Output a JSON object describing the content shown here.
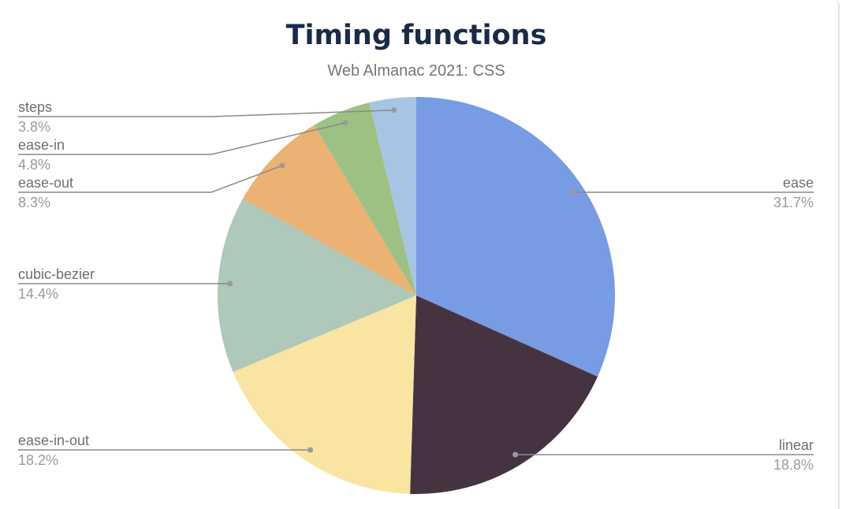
{
  "chart_data": {
    "type": "pie",
    "title": "Timing functions",
    "subtitle": "Web Almanac 2021: CSS",
    "slices": [
      {
        "label": "ease",
        "value": 31.7,
        "display": "31.7%",
        "color": "#779ce3"
      },
      {
        "label": "linear",
        "value": 18.8,
        "display": "18.8%",
        "color": "#463342"
      },
      {
        "label": "ease-in-out",
        "value": 18.2,
        "display": "18.2%",
        "color": "#f9e4a1"
      },
      {
        "label": "cubic-bezier",
        "value": 14.4,
        "display": "14.4%",
        "color": "#aec8b9"
      },
      {
        "label": "ease-out",
        "value": 8.3,
        "display": "8.3%",
        "color": "#ebb273"
      },
      {
        "label": "ease-in",
        "value": 4.8,
        "display": "4.8%",
        "color": "#9dc183"
      },
      {
        "label": "steps",
        "value": 3.8,
        "display": "3.8%",
        "color": "#a8c4e5"
      }
    ],
    "start_angle": "top",
    "direction": "clockwise",
    "legend": "none (leader-line labels)"
  }
}
